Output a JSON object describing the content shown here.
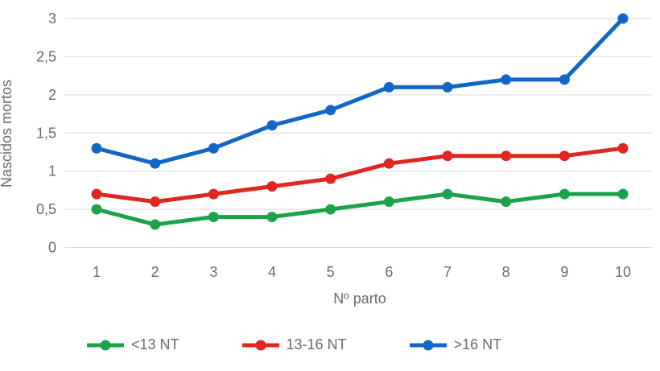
{
  "chart_data": {
    "type": "line",
    "title": "",
    "xlabel": "Nº parto",
    "ylabel": "Nascidos mortos",
    "x": [
      1,
      2,
      3,
      4,
      5,
      6,
      7,
      8,
      9,
      10
    ],
    "x_tick_labels": [
      "1",
      "2",
      "3",
      "4",
      "5",
      "6",
      "7",
      "8",
      "9",
      "10"
    ],
    "y_tick_values": [
      0,
      0.5,
      1,
      1.5,
      2,
      2.5,
      3
    ],
    "y_tick_labels": [
      "0",
      "0,5",
      "1",
      "1,5",
      "2",
      "2,5",
      "3"
    ],
    "ylim": [
      0,
      3
    ],
    "grid": "horizontal-only",
    "legend_position": "bottom",
    "series": [
      {
        "name": "<13 NT",
        "color": "#1aa34a",
        "values": [
          0.5,
          0.3,
          0.4,
          0.4,
          0.5,
          0.6,
          0.7,
          0.6,
          0.7,
          0.7
        ]
      },
      {
        "name": "13-16 NT",
        "color": "#e1251f",
        "values": [
          0.7,
          0.6,
          0.7,
          0.8,
          0.9,
          1.1,
          1.2,
          1.2,
          1.2,
          1.3
        ]
      },
      {
        "name": ">16 NT",
        "color": "#1267c6",
        "values": [
          1.3,
          1.1,
          1.3,
          1.6,
          1.8,
          2.1,
          2.1,
          2.2,
          2.2,
          3.0
        ]
      }
    ]
  },
  "colors": {
    "background": "#ffffff",
    "gridline": "#d9d9d9",
    "axis_text": "#6a6a6a"
  }
}
